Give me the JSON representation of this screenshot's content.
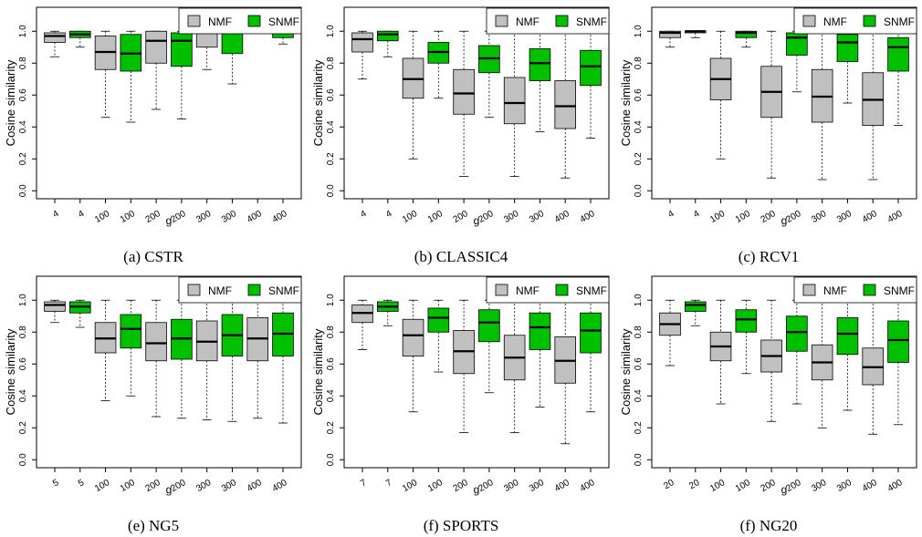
{
  "figure": {
    "legend_labels": [
      "NMF",
      "SNMF"
    ],
    "colors": {
      "NMF": "#c0c0c0",
      "SNMF": "#00c000"
    }
  },
  "chart_data": [
    {
      "type": "boxplot",
      "caption": "(a) CSTR",
      "xlabel": "g",
      "ylabel": "Cosine similarity",
      "ylim": [
        0,
        1
      ],
      "yticks": [
        "0.0",
        "0.2",
        "0.4",
        "0.6",
        "0.8",
        "1.0"
      ],
      "categories": [
        "4",
        "4",
        "100",
        "100",
        "200",
        "200",
        "300",
        "300",
        "400",
        "400"
      ],
      "series_order": [
        "NMF",
        "SNMF",
        "NMF",
        "SNMF",
        "NMF",
        "SNMF",
        "NMF",
        "SNMF",
        "NMF",
        "SNMF"
      ],
      "legend": "top-right",
      "boxes": [
        {
          "min": 0.84,
          "q1": 0.93,
          "median": 0.97,
          "q3": 0.99,
          "max": 1.0
        },
        {
          "min": 0.9,
          "q1": 0.96,
          "median": 0.98,
          "q3": 1.0,
          "max": 1.0
        },
        {
          "min": 0.46,
          "q1": 0.76,
          "median": 0.87,
          "q3": 0.97,
          "max": 1.0
        },
        {
          "min": 0.43,
          "q1": 0.75,
          "median": 0.86,
          "q3": 0.98,
          "max": 1.0
        },
        {
          "min": 0.51,
          "q1": 0.8,
          "median": 0.94,
          "q3": 1.0,
          "max": 1.0
        },
        {
          "min": 0.45,
          "q1": 0.78,
          "median": 0.94,
          "q3": 0.99,
          "max": 1.0
        },
        {
          "min": 0.76,
          "q1": 0.9,
          "median": 0.99,
          "q3": 1.0,
          "max": 1.0
        },
        {
          "min": 0.67,
          "q1": 0.86,
          "median": 0.99,
          "q3": 1.0,
          "max": 1.0
        },
        {
          "min": 0.99,
          "q1": 1.0,
          "median": 1.0,
          "q3": 1.0,
          "max": 1.0
        },
        {
          "min": 0.92,
          "q1": 0.96,
          "median": 1.0,
          "q3": 1.0,
          "max": 1.0
        }
      ]
    },
    {
      "type": "boxplot",
      "caption": "(b) CLASSIC4",
      "xlabel": "g",
      "ylabel": "Cosine similarity",
      "ylim": [
        0,
        1
      ],
      "yticks": [
        "0.0",
        "0.2",
        "0.4",
        "0.6",
        "0.8",
        "1.0"
      ],
      "categories": [
        "4",
        "4",
        "100",
        "100",
        "200",
        "200",
        "300",
        "300",
        "400",
        "400"
      ],
      "series_order": [
        "NMF",
        "SNMF",
        "NMF",
        "SNMF",
        "NMF",
        "SNMF",
        "NMF",
        "SNMF",
        "NMF",
        "SNMF"
      ],
      "legend": "top-right",
      "boxes": [
        {
          "min": 0.7,
          "q1": 0.87,
          "median": 0.95,
          "q3": 0.99,
          "max": 1.0
        },
        {
          "min": 0.84,
          "q1": 0.94,
          "median": 0.98,
          "q3": 1.0,
          "max": 1.0
        },
        {
          "min": 0.2,
          "q1": 0.58,
          "median": 0.7,
          "q3": 0.83,
          "max": 1.0
        },
        {
          "min": 0.58,
          "q1": 0.8,
          "median": 0.87,
          "q3": 0.93,
          "max": 1.0
        },
        {
          "min": 0.09,
          "q1": 0.48,
          "median": 0.61,
          "q3": 0.76,
          "max": 1.0
        },
        {
          "min": 0.46,
          "q1": 0.74,
          "median": 0.83,
          "q3": 0.91,
          "max": 1.0
        },
        {
          "min": 0.09,
          "q1": 0.42,
          "median": 0.55,
          "q3": 0.71,
          "max": 1.0
        },
        {
          "min": 0.37,
          "q1": 0.69,
          "median": 0.8,
          "q3": 0.89,
          "max": 1.0
        },
        {
          "min": 0.08,
          "q1": 0.39,
          "median": 0.53,
          "q3": 0.69,
          "max": 1.0
        },
        {
          "min": 0.33,
          "q1": 0.66,
          "median": 0.78,
          "q3": 0.88,
          "max": 1.0
        }
      ]
    },
    {
      "type": "boxplot",
      "caption": "(c) RCV1",
      "xlabel": "g",
      "ylabel": "Cosine similarity",
      "ylim": [
        0,
        1
      ],
      "yticks": [
        "0.0",
        "0.2",
        "0.4",
        "0.6",
        "0.8",
        "1.0"
      ],
      "categories": [
        "4",
        "4",
        "100",
        "100",
        "200",
        "200",
        "300",
        "300",
        "400",
        "400"
      ],
      "series_order": [
        "NMF",
        "SNMF",
        "NMF",
        "SNMF",
        "NMF",
        "SNMF",
        "NMF",
        "SNMF",
        "NMF",
        "SNMF"
      ],
      "legend": "top-right",
      "boxes": [
        {
          "min": 0.9,
          "q1": 0.96,
          "median": 0.99,
          "q3": 1.0,
          "max": 1.0
        },
        {
          "min": 0.96,
          "q1": 0.99,
          "median": 1.0,
          "q3": 1.0,
          "max": 1.0
        },
        {
          "min": 0.2,
          "q1": 0.57,
          "median": 0.7,
          "q3": 0.83,
          "max": 1.0
        },
        {
          "min": 0.9,
          "q1": 0.96,
          "median": 0.99,
          "q3": 1.0,
          "max": 1.0
        },
        {
          "min": 0.08,
          "q1": 0.46,
          "median": 0.62,
          "q3": 0.78,
          "max": 1.0
        },
        {
          "min": 0.62,
          "q1": 0.85,
          "median": 0.96,
          "q3": 0.99,
          "max": 1.0
        },
        {
          "min": 0.07,
          "q1": 0.43,
          "median": 0.59,
          "q3": 0.76,
          "max": 1.0
        },
        {
          "min": 0.55,
          "q1": 0.81,
          "median": 0.93,
          "q3": 0.98,
          "max": 1.0
        },
        {
          "min": 0.07,
          "q1": 0.41,
          "median": 0.57,
          "q3": 0.74,
          "max": 1.0
        },
        {
          "min": 0.41,
          "q1": 0.75,
          "median": 0.9,
          "q3": 0.96,
          "max": 1.0
        }
      ]
    },
    {
      "type": "boxplot",
      "caption": "(e) NG5",
      "xlabel": "g",
      "ylabel": "Cosine similarity",
      "ylim": [
        0,
        1
      ],
      "yticks": [
        "0.0",
        "0.2",
        "0.4",
        "0.6",
        "0.8",
        "1.0"
      ],
      "categories": [
        "5",
        "5",
        "100",
        "100",
        "200",
        "200",
        "300",
        "300",
        "400",
        "400"
      ],
      "series_order": [
        "NMF",
        "SNMF",
        "NMF",
        "SNMF",
        "NMF",
        "SNMF",
        "NMF",
        "SNMF",
        "NMF",
        "SNMF"
      ],
      "legend": "top-right",
      "boxes": [
        {
          "min": 0.86,
          "q1": 0.93,
          "median": 0.97,
          "q3": 0.99,
          "max": 1.0
        },
        {
          "min": 0.83,
          "q1": 0.92,
          "median": 0.96,
          "q3": 0.99,
          "max": 1.0
        },
        {
          "min": 0.37,
          "q1": 0.67,
          "median": 0.76,
          "q3": 0.86,
          "max": 1.0
        },
        {
          "min": 0.4,
          "q1": 0.7,
          "median": 0.82,
          "q3": 0.91,
          "max": 1.0
        },
        {
          "min": 0.27,
          "q1": 0.62,
          "median": 0.73,
          "q3": 0.86,
          "max": 1.0
        },
        {
          "min": 0.26,
          "q1": 0.63,
          "median": 0.76,
          "q3": 0.88,
          "max": 1.0
        },
        {
          "min": 0.25,
          "q1": 0.62,
          "median": 0.74,
          "q3": 0.87,
          "max": 1.0
        },
        {
          "min": 0.24,
          "q1": 0.65,
          "median": 0.78,
          "q3": 0.91,
          "max": 1.0
        },
        {
          "min": 0.26,
          "q1": 0.62,
          "median": 0.76,
          "q3": 0.89,
          "max": 1.0
        },
        {
          "min": 0.23,
          "q1": 0.65,
          "median": 0.79,
          "q3": 0.92,
          "max": 1.0
        }
      ]
    },
    {
      "type": "boxplot",
      "caption": "(f) SPORTS",
      "xlabel": "g",
      "ylabel": "Cosine similarity",
      "ylim": [
        0,
        1
      ],
      "yticks": [
        "0.0",
        "0.2",
        "0.4",
        "0.6",
        "0.8",
        "1.0"
      ],
      "categories": [
        "7",
        "7",
        "100",
        "100",
        "200",
        "200",
        "300",
        "300",
        "400",
        "400"
      ],
      "series_order": [
        "NMF",
        "SNMF",
        "NMF",
        "SNMF",
        "NMF",
        "SNMF",
        "NMF",
        "SNMF",
        "NMF",
        "SNMF"
      ],
      "legend": "top-right",
      "boxes": [
        {
          "min": 0.69,
          "q1": 0.86,
          "median": 0.92,
          "q3": 0.97,
          "max": 1.0
        },
        {
          "min": 0.84,
          "q1": 0.93,
          "median": 0.96,
          "q3": 0.99,
          "max": 1.0
        },
        {
          "min": 0.3,
          "q1": 0.65,
          "median": 0.78,
          "q3": 0.88,
          "max": 1.0
        },
        {
          "min": 0.55,
          "q1": 0.8,
          "median": 0.89,
          "q3": 0.95,
          "max": 1.0
        },
        {
          "min": 0.17,
          "q1": 0.54,
          "median": 0.68,
          "q3": 0.81,
          "max": 1.0
        },
        {
          "min": 0.42,
          "q1": 0.74,
          "median": 0.86,
          "q3": 0.94,
          "max": 1.0
        },
        {
          "min": 0.17,
          "q1": 0.5,
          "median": 0.64,
          "q3": 0.78,
          "max": 1.0
        },
        {
          "min": 0.33,
          "q1": 0.69,
          "median": 0.83,
          "q3": 0.92,
          "max": 1.0
        },
        {
          "min": 0.1,
          "q1": 0.48,
          "median": 0.62,
          "q3": 0.77,
          "max": 1.0
        },
        {
          "min": 0.3,
          "q1": 0.67,
          "median": 0.81,
          "q3": 0.92,
          "max": 1.0
        }
      ]
    },
    {
      "type": "boxplot",
      "caption": "(f) NG20",
      "xlabel": "g",
      "ylabel": "Cosine similarity",
      "ylim": [
        0,
        1
      ],
      "yticks": [
        "0.0",
        "0.2",
        "0.4",
        "0.6",
        "0.8",
        "1.0"
      ],
      "categories": [
        "20",
        "20",
        "100",
        "100",
        "200",
        "200",
        "300",
        "300",
        "400",
        "400"
      ],
      "series_order": [
        "NMF",
        "SNMF",
        "NMF",
        "SNMF",
        "NMF",
        "SNMF",
        "NMF",
        "SNMF",
        "NMF",
        "SNMF"
      ],
      "legend": "top-right",
      "boxes": [
        {
          "min": 0.59,
          "q1": 0.78,
          "median": 0.85,
          "q3": 0.92,
          "max": 1.0
        },
        {
          "min": 0.84,
          "q1": 0.93,
          "median": 0.97,
          "q3": 0.99,
          "max": 1.0
        },
        {
          "min": 0.35,
          "q1": 0.62,
          "median": 0.71,
          "q3": 0.8,
          "max": 1.0
        },
        {
          "min": 0.54,
          "q1": 0.8,
          "median": 0.88,
          "q3": 0.94,
          "max": 1.0
        },
        {
          "min": 0.24,
          "q1": 0.55,
          "median": 0.65,
          "q3": 0.75,
          "max": 1.0
        },
        {
          "min": 0.35,
          "q1": 0.68,
          "median": 0.8,
          "q3": 0.9,
          "max": 1.0
        },
        {
          "min": 0.2,
          "q1": 0.5,
          "median": 0.61,
          "q3": 0.72,
          "max": 1.0
        },
        {
          "min": 0.31,
          "q1": 0.66,
          "median": 0.79,
          "q3": 0.89,
          "max": 1.0
        },
        {
          "min": 0.16,
          "q1": 0.47,
          "median": 0.58,
          "q3": 0.7,
          "max": 1.0
        },
        {
          "min": 0.22,
          "q1": 0.61,
          "median": 0.75,
          "q3": 0.87,
          "max": 1.0
        }
      ]
    }
  ]
}
